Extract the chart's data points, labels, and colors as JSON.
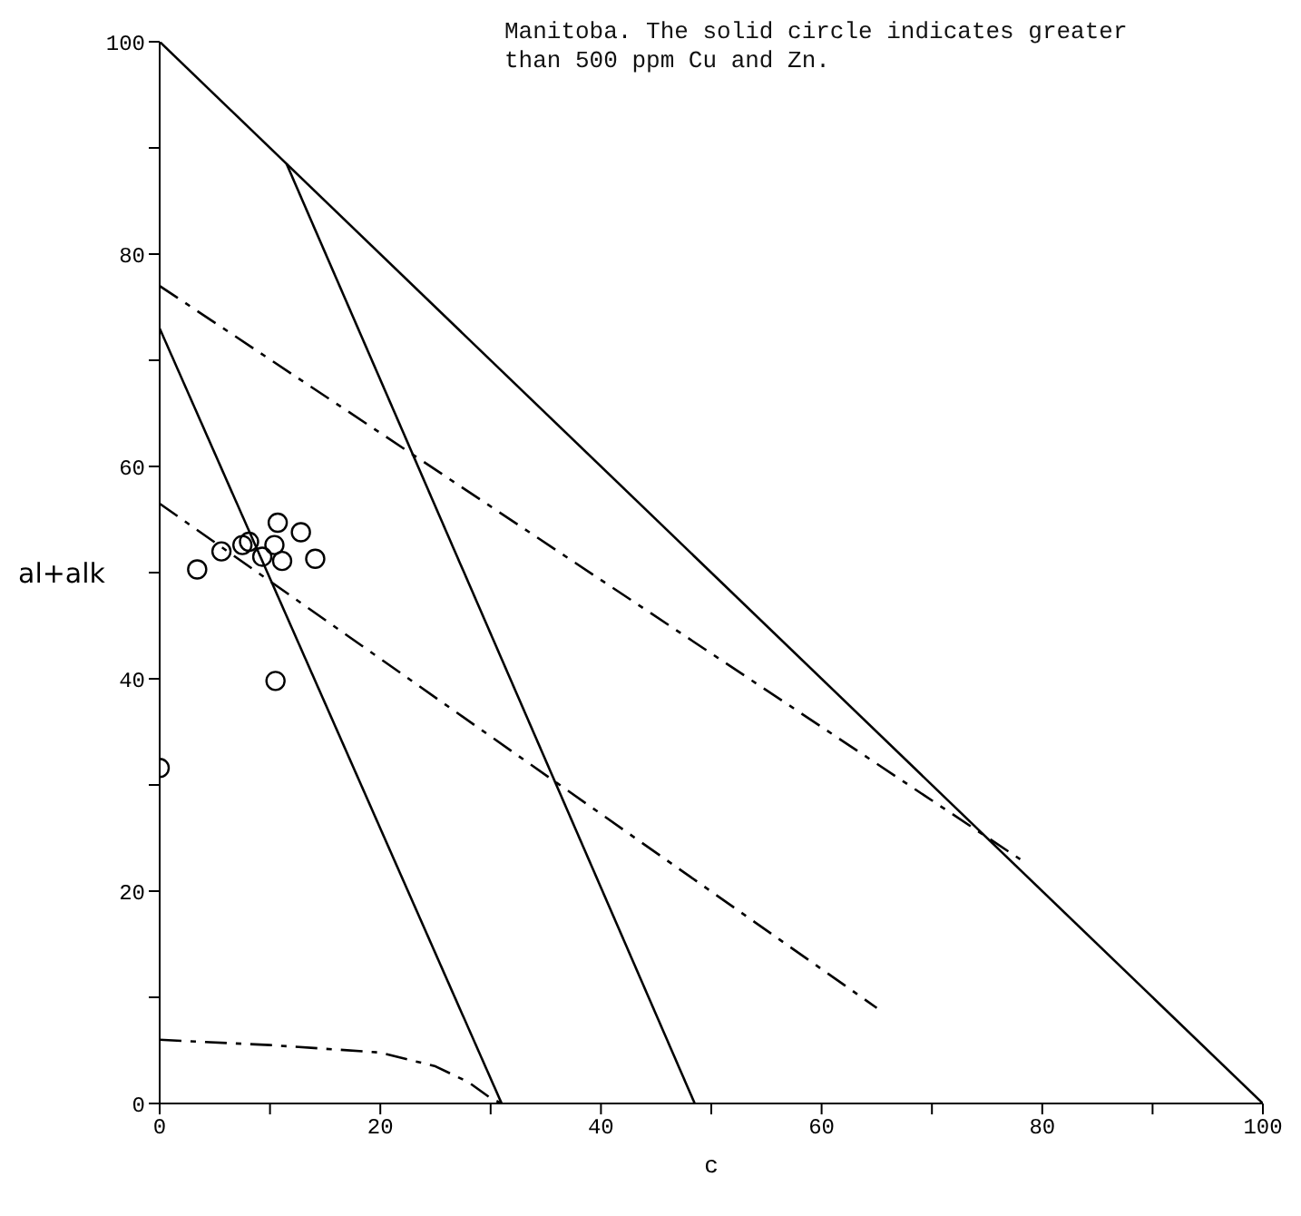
{
  "chart_data": {
    "type": "line",
    "xlabel": "c",
    "ylabel": "al+alk",
    "annotations": [
      "Manitoba.  The solid circle indicates greater than 500 ppm Cu and Zn."
    ],
    "xlim": [
      0,
      100
    ],
    "ylim": [
      0,
      100
    ],
    "xticks": [
      0,
      {
        "value": 10,
        "label": null
      },
      20,
      {
        "value": 30,
        "label": null
      },
      40,
      {
        "value": 50,
        "label": null
      },
      60,
      {
        "value": 70,
        "label": null
      },
      80,
      {
        "value": 90,
        "label": null
      },
      100
    ],
    "yticks": [
      0,
      {
        "value": 10,
        "label": null
      },
      20,
      {
        "value": 30,
        "label": null
      },
      40,
      {
        "value": 50,
        "label": null
      },
      60,
      {
        "value": 70,
        "label": null
      },
      80,
      {
        "value": 90,
        "label": null
      },
      100
    ],
    "grid": false,
    "series": [
      {
        "color": "#000000",
        "line_style": "solid",
        "x": [
          0,
          100
        ],
        "values": [
          100,
          0
        ]
      },
      {
        "color": "#000000",
        "line_style": "solid",
        "x": [
          0,
          31
        ],
        "values": [
          73,
          0
        ]
      },
      {
        "color": "#000000",
        "line_style": "solid",
        "x": [
          11.5,
          48.5
        ],
        "values": [
          88.5,
          0
        ]
      },
      {
        "color": "#000000",
        "line_style": "dashed",
        "x": [
          0,
          78
        ],
        "values": [
          77,
          23
        ]
      },
      {
        "color": "#000000",
        "line_style": "dashed",
        "x": [
          0,
          65
        ],
        "values": [
          56.5,
          9
        ]
      },
      {
        "color": "#000000",
        "line_style": "dashed",
        "x": [
          0,
          10,
          20,
          25,
          28,
          30,
          31
        ],
        "values": [
          6,
          5.5,
          4.8,
          3.5,
          2,
          0.5,
          0
        ]
      },
      {
        "type": "scatter",
        "color": "#000000",
        "marker": "circle",
        "x": [
          3.4,
          5.6,
          7.5,
          8.1,
          9.3,
          10.4,
          10.7,
          12.8,
          11.1,
          14.1,
          10.5,
          0
        ],
        "values": [
          50.3,
          52,
          52.6,
          52.9,
          51.5,
          52.6,
          54.7,
          53.8,
          51.1,
          51.3,
          39.8,
          31.6
        ]
      }
    ]
  }
}
